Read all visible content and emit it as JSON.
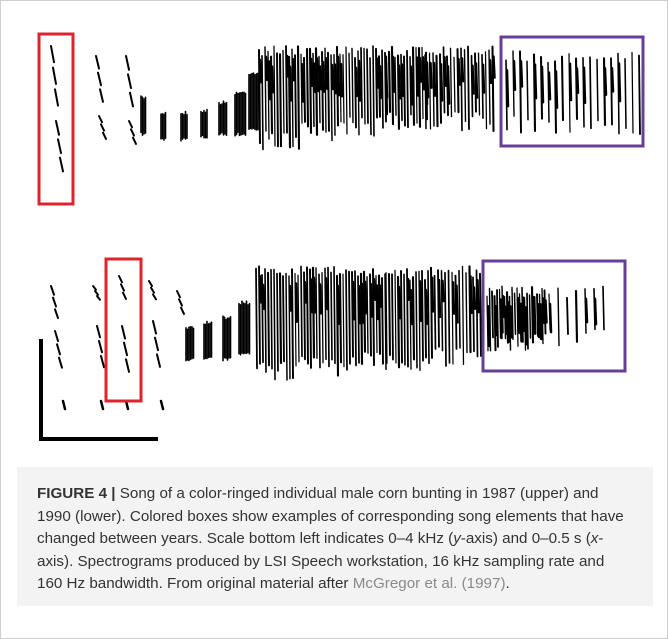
{
  "caption": {
    "label": "FIGURE 4",
    "separator": "|",
    "segments": [
      "Song of a color-ringed individual male corn bunting in 1987 (upper) and 1990 (lower). Colored boxes show examples of corresponding song elements that have changed between years. Scale bottom left indicates 0–4 kHz (",
      "y",
      "-axis) and 0–0.5 s (",
      "x",
      "-axis). Spectrograms produced by LSI Speech workstation, 16 kHz sampling rate and 160 Hz bandwidth. From original material after "
    ],
    "citation": "McGregor et al. (1997)",
    "end": "."
  }
}
